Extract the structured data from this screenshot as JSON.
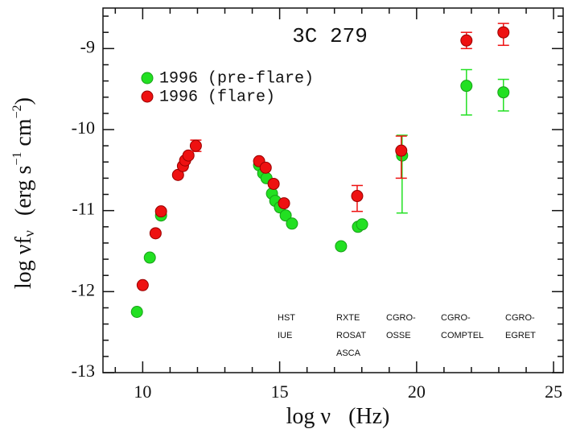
{
  "chart_data": {
    "type": "scatter",
    "title": "3C 279",
    "x_label": [
      "log ν",
      "(Hz)"
    ],
    "y_label": [
      "log νf",
      "ν",
      "(erg s",
      "−1",
      " cm",
      "−2",
      ")"
    ],
    "xlim": [
      8.55,
      25.35
    ],
    "ylim": [
      -13,
      -8.5
    ],
    "xticks": [
      10,
      15,
      20,
      25
    ],
    "yticks": [
      -13,
      -12,
      -11,
      -10,
      -9
    ],
    "xminorticks": [
      9,
      11,
      12,
      13,
      14,
      16,
      17,
      18,
      19,
      21,
      22,
      23,
      24
    ],
    "yminorticks": [
      -12.8,
      -12.6,
      -12.4,
      -12.2,
      -11.8,
      -11.6,
      -11.4,
      -11.2,
      -10.8,
      -10.6,
      -10.4,
      -10.2,
      -9.8,
      -9.6,
      -9.4,
      -9.2,
      -8.8,
      -8.6
    ],
    "legend": "upper left",
    "series": [
      {
        "name": "1996 (pre-flare)",
        "color": "#22e022",
        "x": [
          9.79,
          10.26,
          10.67,
          14.25,
          14.4,
          14.52,
          14.72,
          14.84,
          15.01,
          15.22,
          15.45,
          17.24,
          17.86,
          18.01,
          19.47,
          21.82,
          23.17
        ],
        "values": [
          -12.25,
          -11.58,
          -11.06,
          -10.44,
          -10.54,
          -10.6,
          -10.79,
          -10.88,
          -10.96,
          -11.06,
          -11.16,
          -11.44,
          -11.2,
          -11.17,
          -10.32,
          -9.46,
          -9.54
        ],
        "error_high": [
          null,
          null,
          null,
          null,
          null,
          null,
          null,
          null,
          null,
          null,
          null,
          null,
          null,
          null,
          0.25,
          0.2,
          0.16
        ],
        "error_low": [
          null,
          null,
          null,
          null,
          null,
          null,
          null,
          null,
          null,
          null,
          null,
          null,
          null,
          null,
          0.71,
          0.36,
          0.23
        ]
      },
      {
        "name": "1996 (flare)",
        "color": "#ee1111",
        "x": [
          10.0,
          10.47,
          10.67,
          11.29,
          11.47,
          11.55,
          11.67,
          11.94,
          14.25,
          14.49,
          14.78,
          15.16,
          17.83,
          19.44,
          21.82,
          23.17
        ],
        "values": [
          -11.92,
          -11.28,
          -11.01,
          -10.56,
          -10.45,
          -10.38,
          -10.32,
          -10.2,
          -10.39,
          -10.47,
          -10.67,
          -10.91,
          -10.82,
          -10.26,
          -8.9,
          -8.8
        ],
        "error_high": [
          null,
          null,
          null,
          null,
          null,
          null,
          null,
          0.07,
          null,
          null,
          null,
          null,
          0.13,
          0.18,
          0.1,
          0.11
        ],
        "error_low": [
          null,
          null,
          null,
          null,
          null,
          null,
          null,
          0.07,
          null,
          null,
          null,
          null,
          0.19,
          0.34,
          0.1,
          0.16
        ]
      }
    ],
    "annotations": [
      [
        "HST",
        "IUE"
      ],
      [
        "RXTE",
        "ROSAT",
        "ASCA"
      ],
      [
        "CGRO-",
        "OSSE"
      ],
      [
        "CGRO-",
        "COMPTEL"
      ],
      [
        "CGRO-",
        "EGRET"
      ]
    ]
  }
}
